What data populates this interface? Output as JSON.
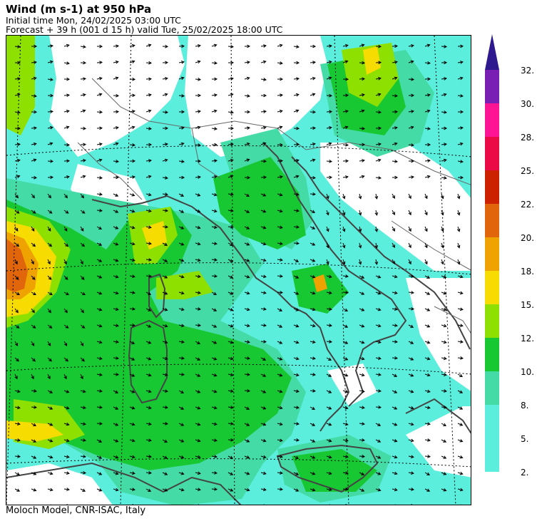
{
  "header": {
    "title": "Wind (m s-1) at 950 hPa",
    "initial_time": "Initial time  Mon, 24/02/2025  03:00 UTC",
    "forecast": "Forecast +  39 h  (001 d 15 h)  valid Tue, 25/02/2025 18:00 UTC"
  },
  "footer": {
    "credit": "Moloch Model, CNR-ISAC, Italy"
  },
  "colorbar": {
    "levels": [
      {
        "label": "32.",
        "color": "#7a1fb4"
      },
      {
        "label": "30.",
        "color": "#e11be8"
      },
      {
        "label": "28.",
        "color": "#ff1493"
      },
      {
        "label": "25.",
        "color": "#ea0a46"
      },
      {
        "label": "22.",
        "color": "#cc2200"
      },
      {
        "label": "20.",
        "color": "#e0650b"
      },
      {
        "label": "18.",
        "color": "#efa300"
      },
      {
        "label": "15.",
        "color": "#f6dc00"
      },
      {
        "label": "12.",
        "color": "#8ee000"
      },
      {
        "label": "10.",
        "color": "#18c833"
      },
      {
        "label": "8.",
        "color": "#44dba6"
      },
      {
        "label": "5.",
        "color": "#5ceedc"
      },
      {
        "label": "2.",
        "color": "#5ceedc"
      }
    ],
    "top_arrow_color": "#2e1a8e"
  },
  "map_colors": {
    "background": "#ffffff",
    "coast": "#444444",
    "border": "#666666",
    "grid": "#000000"
  }
}
